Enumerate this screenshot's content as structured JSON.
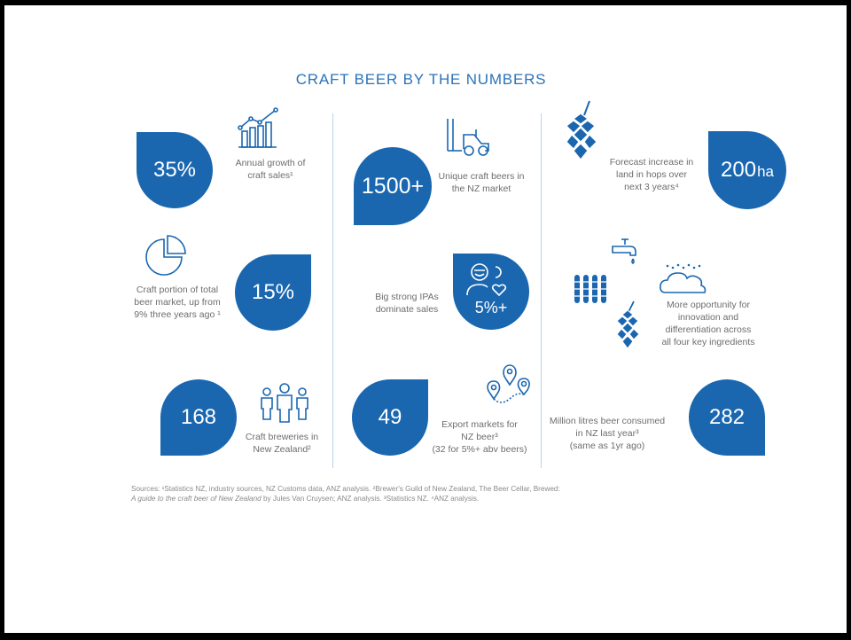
{
  "title": "CRAFT BEER BY THE NUMBERS",
  "stats": {
    "growth": {
      "value": "35%",
      "desc_1": "Annual growth of",
      "desc_2": "craft sales¹",
      "icon": "bar-chart-growth-icon"
    },
    "market_share": {
      "value": "15%",
      "desc_1": "Craft portion of total",
      "desc_2": "beer market, up from",
      "desc_3": "9% three years ago ¹",
      "icon": "pie-chart-icon"
    },
    "breweries": {
      "value": "168",
      "desc_1": "Craft breweries in",
      "desc_2": "New Zealand²",
      "icon": "people-group-icon"
    },
    "unique_beers": {
      "value": "1500+",
      "desc_1": "Unique craft beers in",
      "desc_2": "the NZ market",
      "icon": "forklift-icon"
    },
    "ipas": {
      "value": "5%+",
      "desc_1": "Big strong IPAs",
      "desc_2": "dominate sales",
      "icon": "person-heart-icon"
    },
    "export": {
      "value": "49",
      "desc_1": "Export markets for",
      "desc_2": "NZ beer³",
      "desc_3": "(32 for 5%+ abv beers)",
      "icon": "map-pins-icon"
    },
    "hops": {
      "value": "200",
      "unit": "ha",
      "desc_1": "Forecast increase in",
      "desc_2": "land in hops over",
      "desc_3": "next 3 years⁴",
      "icon": "hop-icon"
    },
    "ingredients": {
      "desc_1": "More opportunity for",
      "desc_2": "innovation and",
      "desc_3": "differentiation across",
      "desc_4": "all four key ingredients",
      "icons": [
        "tap-icon",
        "wheat-icon",
        "yeast-cloud-icon",
        "hop-icon"
      ]
    },
    "litres": {
      "value": "282",
      "desc_1": "Million litres beer consumed",
      "desc_2": "in NZ last year³",
      "desc_3": "(same as 1yr ago)"
    }
  },
  "sources": {
    "line_1": "Sources: ¹Statistics NZ, industry sources, NZ Customs data, ANZ analysis. ²Brewer's Guild of New Zealand, The Beer Cellar, Brewed:",
    "line_2_italic": "A guide to the craft beer of New Zealand",
    "line_2_rest": " by Jules Van Cruysen; ANZ analysis. ³Statistics NZ. ⁴ANZ analysis."
  },
  "colors": {
    "accent": "#1a67b0",
    "title": "#2b73b9",
    "text": "#6d6d6d",
    "divider": "#b9d3ea"
  }
}
